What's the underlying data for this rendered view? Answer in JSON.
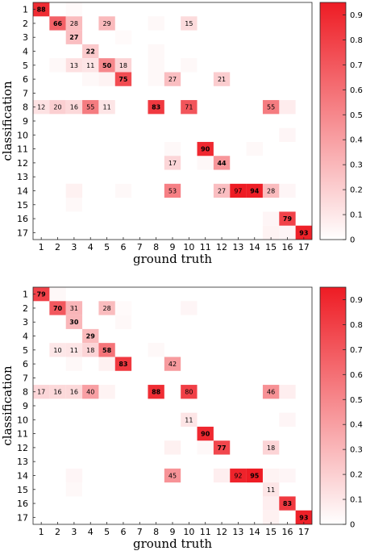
{
  "chart_data": [
    {
      "type": "heatmap",
      "xlabel": "ground truth",
      "ylabel": "classification",
      "x_categories": [
        "1",
        "2",
        "3",
        "4",
        "5",
        "6",
        "7",
        "8",
        "9",
        "10",
        "11",
        "12",
        "13",
        "14",
        "15",
        "16",
        "17"
      ],
      "y_categories": [
        "1",
        "2",
        "3",
        "4",
        "5",
        "6",
        "7",
        "8",
        "9",
        "10",
        "11",
        "12",
        "13",
        "14",
        "15",
        "16",
        "17"
      ],
      "colorbar": {
        "min": 0,
        "max": 0.95,
        "ticks": [
          "0",
          "0.1",
          "0.2",
          "0.3",
          "0.4",
          "0.5",
          "0.6",
          "0.7",
          "0.8",
          "0.9"
        ],
        "low_color": "#ffffff",
        "high_color": "#ee1c24"
      },
      "cells": [
        {
          "x": "1",
          "y": "1",
          "value": 0.88,
          "label": "88"
        },
        {
          "x": "2",
          "y": "2",
          "value": 0.66,
          "label": "66"
        },
        {
          "x": "3",
          "y": "2",
          "value": 0.28,
          "label": "28"
        },
        {
          "x": "5",
          "y": "2",
          "value": 0.29,
          "label": "29"
        },
        {
          "x": "10",
          "y": "2",
          "value": 0.15,
          "label": "15"
        },
        {
          "x": "3",
          "y": "3",
          "value": 0.27,
          "label": "27"
        },
        {
          "x": "4",
          "y": "4",
          "value": 0.22,
          "label": "22"
        },
        {
          "x": "3",
          "y": "5",
          "value": 0.13,
          "label": "13"
        },
        {
          "x": "4",
          "y": "5",
          "value": 0.11,
          "label": "11"
        },
        {
          "x": "5",
          "y": "5",
          "value": 0.5,
          "label": "50"
        },
        {
          "x": "6",
          "y": "5",
          "value": 0.18,
          "label": "18"
        },
        {
          "x": "6",
          "y": "6",
          "value": 0.75,
          "label": "75"
        },
        {
          "x": "9",
          "y": "6",
          "value": 0.27,
          "label": "27"
        },
        {
          "x": "12",
          "y": "6",
          "value": 0.21,
          "label": "21"
        },
        {
          "x": "1",
          "y": "8",
          "value": 0.12,
          "label": "12"
        },
        {
          "x": "2",
          "y": "8",
          "value": 0.2,
          "label": "20"
        },
        {
          "x": "3",
          "y": "8",
          "value": 0.16,
          "label": "16"
        },
        {
          "x": "4",
          "y": "8",
          "value": 0.55,
          "label": "55"
        },
        {
          "x": "5",
          "y": "8",
          "value": 0.11,
          "label": "11"
        },
        {
          "x": "8",
          "y": "8",
          "value": 0.83,
          "label": "83"
        },
        {
          "x": "10",
          "y": "8",
          "value": 0.71,
          "label": "71"
        },
        {
          "x": "15",
          "y": "8",
          "value": 0.55,
          "label": "55"
        },
        {
          "x": "11",
          "y": "11",
          "value": 0.9,
          "label": "90"
        },
        {
          "x": "9",
          "y": "12",
          "value": 0.17,
          "label": "17"
        },
        {
          "x": "12",
          "y": "12",
          "value": 0.44,
          "label": "44"
        },
        {
          "x": "9",
          "y": "14",
          "value": 0.53,
          "label": "53"
        },
        {
          "x": "12",
          "y": "14",
          "value": 0.27,
          "label": "27"
        },
        {
          "x": "13",
          "y": "14",
          "value": 0.97,
          "label": "97"
        },
        {
          "x": "14",
          "y": "14",
          "value": 0.94,
          "label": "94"
        },
        {
          "x": "15",
          "y": "14",
          "value": 0.28,
          "label": "28"
        },
        {
          "x": "16",
          "y": "16",
          "value": 0.79,
          "label": "79"
        },
        {
          "x": "17",
          "y": "17",
          "value": 0.93,
          "label": "93"
        }
      ],
      "background_cells": [
        {
          "x": "3",
          "y": "1",
          "value": 0.02
        },
        {
          "x": "8",
          "y": "2",
          "value": 0.03
        },
        {
          "x": "6",
          "y": "3",
          "value": 0.02
        },
        {
          "x": "8",
          "y": "4",
          "value": 0.03
        },
        {
          "x": "2",
          "y": "5",
          "value": 0.03
        },
        {
          "x": "8",
          "y": "5",
          "value": 0.03
        },
        {
          "x": "10",
          "y": "5",
          "value": 0.03
        },
        {
          "x": "4",
          "y": "6",
          "value": 0.03
        },
        {
          "x": "5",
          "y": "6",
          "value": 0.05
        },
        {
          "x": "8",
          "y": "6",
          "value": 0.03
        },
        {
          "x": "16",
          "y": "8",
          "value": 0.08
        },
        {
          "x": "16",
          "y": "10",
          "value": 0.04
        },
        {
          "x": "9",
          "y": "11",
          "value": 0.03
        },
        {
          "x": "14",
          "y": "11",
          "value": 0.03
        },
        {
          "x": "11",
          "y": "12",
          "value": 0.03
        },
        {
          "x": "3",
          "y": "14",
          "value": 0.06
        },
        {
          "x": "6",
          "y": "14",
          "value": 0.03
        },
        {
          "x": "16",
          "y": "14",
          "value": 0.04
        },
        {
          "x": "3",
          "y": "15",
          "value": 0.03
        },
        {
          "x": "15",
          "y": "16",
          "value": 0.04
        },
        {
          "x": "15",
          "y": "17",
          "value": 0.05
        },
        {
          "x": "16",
          "y": "17",
          "value": 0.04
        }
      ]
    },
    {
      "type": "heatmap",
      "xlabel": "ground truth",
      "ylabel": "classification",
      "x_categories": [
        "1",
        "2",
        "3",
        "4",
        "5",
        "6",
        "7",
        "8",
        "9",
        "10",
        "11",
        "12",
        "13",
        "14",
        "15",
        "16",
        "17"
      ],
      "y_categories": [
        "1",
        "2",
        "3",
        "4",
        "5",
        "6",
        "7",
        "8",
        "9",
        "10",
        "11",
        "12",
        "13",
        "14",
        "15",
        "16",
        "17"
      ],
      "colorbar": {
        "min": 0,
        "max": 0.95,
        "ticks": [
          "0",
          "0.1",
          "0.2",
          "0.3",
          "0.4",
          "0.5",
          "0.6",
          "0.7",
          "0.8",
          "0.9"
        ],
        "low_color": "#ffffff",
        "high_color": "#ee1c24"
      },
      "cells": [
        {
          "x": "1",
          "y": "1",
          "value": 0.79,
          "label": "79"
        },
        {
          "x": "2",
          "y": "2",
          "value": 0.7,
          "label": "70"
        },
        {
          "x": "3",
          "y": "2",
          "value": 0.31,
          "label": "31"
        },
        {
          "x": "5",
          "y": "2",
          "value": 0.28,
          "label": "28"
        },
        {
          "x": "3",
          "y": "3",
          "value": 0.3,
          "label": "30"
        },
        {
          "x": "4",
          "y": "4",
          "value": 0.29,
          "label": "29"
        },
        {
          "x": "2",
          "y": "5",
          "value": 0.1,
          "label": "10"
        },
        {
          "x": "3",
          "y": "5",
          "value": 0.11,
          "label": "11"
        },
        {
          "x": "4",
          "y": "5",
          "value": 0.18,
          "label": "18"
        },
        {
          "x": "5",
          "y": "5",
          "value": 0.58,
          "label": "58"
        },
        {
          "x": "6",
          "y": "6",
          "value": 0.83,
          "label": "83"
        },
        {
          "x": "9",
          "y": "6",
          "value": 0.42,
          "label": "42"
        },
        {
          "x": "1",
          "y": "8",
          "value": 0.17,
          "label": "17"
        },
        {
          "x": "2",
          "y": "8",
          "value": 0.16,
          "label": "16"
        },
        {
          "x": "3",
          "y": "8",
          "value": 0.16,
          "label": "16"
        },
        {
          "x": "4",
          "y": "8",
          "value": 0.4,
          "label": "40"
        },
        {
          "x": "8",
          "y": "8",
          "value": 0.88,
          "label": "88"
        },
        {
          "x": "10",
          "y": "8",
          "value": 0.8,
          "label": "80"
        },
        {
          "x": "15",
          "y": "8",
          "value": 0.46,
          "label": "46"
        },
        {
          "x": "10",
          "y": "10",
          "value": 0.11,
          "label": "11"
        },
        {
          "x": "11",
          "y": "11",
          "value": 0.9,
          "label": "90"
        },
        {
          "x": "12",
          "y": "12",
          "value": 0.77,
          "label": "77"
        },
        {
          "x": "15",
          "y": "12",
          "value": 0.18,
          "label": "18"
        },
        {
          "x": "9",
          "y": "14",
          "value": 0.45,
          "label": "45"
        },
        {
          "x": "13",
          "y": "14",
          "value": 0.92,
          "label": "92"
        },
        {
          "x": "14",
          "y": "14",
          "value": 0.95,
          "label": "95"
        },
        {
          "x": "15",
          "y": "15",
          "value": 0.11,
          "label": "11"
        },
        {
          "x": "16",
          "y": "16",
          "value": 0.83,
          "label": "83"
        },
        {
          "x": "17",
          "y": "17",
          "value": 0.93,
          "label": "93"
        }
      ],
      "background_cells": [
        {
          "x": "2",
          "y": "1",
          "value": 0.03
        },
        {
          "x": "6",
          "y": "2",
          "value": 0.02
        },
        {
          "x": "10",
          "y": "2",
          "value": 0.04
        },
        {
          "x": "6",
          "y": "3",
          "value": 0.03
        },
        {
          "x": "8",
          "y": "5",
          "value": 0.03
        },
        {
          "x": "5",
          "y": "6",
          "value": 0.06
        },
        {
          "x": "3",
          "y": "6",
          "value": 0.03
        },
        {
          "x": "16",
          "y": "8",
          "value": 0.07
        },
        {
          "x": "5",
          "y": "8",
          "value": 0.05
        },
        {
          "x": "16",
          "y": "10",
          "value": 0.04
        },
        {
          "x": "9",
          "y": "12",
          "value": 0.06
        },
        {
          "x": "11",
          "y": "12",
          "value": 0.03
        },
        {
          "x": "3",
          "y": "14",
          "value": 0.04
        },
        {
          "x": "12",
          "y": "14",
          "value": 0.07
        },
        {
          "x": "15",
          "y": "14",
          "value": 0.05
        },
        {
          "x": "16",
          "y": "14",
          "value": 0.04
        },
        {
          "x": "3",
          "y": "15",
          "value": 0.03
        },
        {
          "x": "15",
          "y": "16",
          "value": 0.07
        },
        {
          "x": "15",
          "y": "17",
          "value": 0.06
        }
      ]
    }
  ]
}
